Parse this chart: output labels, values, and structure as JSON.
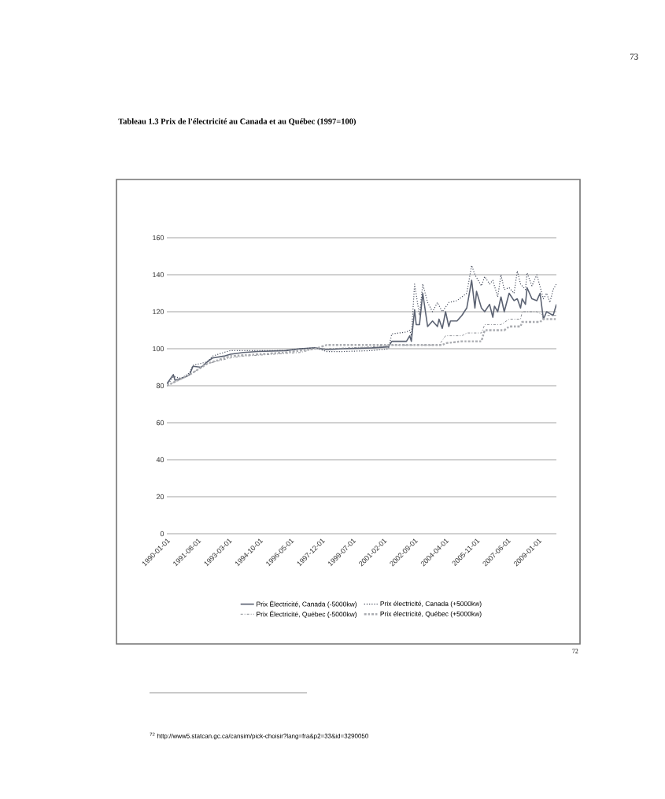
{
  "chart_data": {
    "type": "line",
    "title": "Tableau 1.3 Prix de l'électricité au Canada et au Québec (1997=100)",
    "annotations": [
      "73",
      "72",
      "$^{72}$ http://www5.statcan.gc.ca/cansim/pick-choisir?lang=fra&p2=33&id=3290050"
    ],
    "xlim": [
      "1990-01-01",
      "2009-12-01"
    ],
    "xticks": [
      "1990-01-01",
      "1991-08-01",
      "1993-03-01",
      "1994-10-01",
      "1996-05-01",
      "1997-12-01",
      "1999-07-01",
      "2001-02-01",
      "2002-09-01",
      "2004-04-01",
      "2005-11-01",
      "2007-06-01",
      "2009-01-01"
    ],
    "ylim": [
      0,
      160
    ],
    "yticks": [
      0,
      20,
      40,
      60,
      80,
      100,
      120,
      140,
      160
    ],
    "grid": "y",
    "legend": "bottom",
    "series": [
      {
        "name": "Prix Électricité, Canada  (-5000kw)",
        "color": "#5b6272",
        "line_style": "solid",
        "x": [
          "1990-01",
          "1990-05",
          "1990-06",
          "1990-10",
          "1991-01",
          "1991-03",
          "1991-05",
          "1991-10",
          "1992-02",
          "1992-05",
          "1992-12",
          "1993-04",
          "1993-12",
          "1994-09",
          "1996-02",
          "1996-11",
          "1997-08",
          "1998-03",
          "1999-01",
          "2000-07",
          "2001-05",
          "2001-07",
          "2002-04",
          "2002-06",
          "2002-07",
          "2002-09",
          "2002-10",
          "2002-12",
          "2003-02",
          "2003-05",
          "2003-08",
          "2003-11",
          "2003-12",
          "2004-02",
          "2004-04",
          "2004-06",
          "2004-07",
          "2004-11",
          "2005-02",
          "2005-05",
          "2005-08",
          "2005-10",
          "2005-11",
          "2006-02",
          "2006-04",
          "2006-07",
          "2006-09",
          "2006-10",
          "2006-12",
          "2007-02",
          "2007-04",
          "2007-07",
          "2007-10",
          "2007-12",
          "2008-02",
          "2008-03",
          "2008-05",
          "2008-06",
          "2008-09",
          "2008-12",
          "2009-02",
          "2009-04",
          "2009-06",
          "2009-08",
          "2009-10",
          "2009-12"
        ],
        "values": [
          81,
          86,
          83,
          84,
          85,
          86,
          90.5,
          90,
          93,
          95,
          96,
          97,
          98,
          98.5,
          99,
          100,
          100.5,
          99.5,
          100,
          100.5,
          101,
          104,
          104,
          107,
          104,
          121,
          113,
          113,
          130,
          112,
          115,
          112,
          116,
          111,
          120,
          112,
          115,
          115,
          118,
          122,
          137,
          122,
          131,
          122,
          120,
          124,
          117,
          123,
          120,
          128,
          120,
          130,
          126,
          127,
          122,
          127,
          124,
          133,
          127,
          126,
          130,
          116,
          120,
          119,
          118,
          124
        ]
      },
      {
        "name": "Prix électricité, Canada  (+5000kw)",
        "color": "#4a5060",
        "line_style": "dotted",
        "x": [
          "1990-01",
          "1990-05",
          "1990-10",
          "1991-03",
          "1991-05",
          "1992-02",
          "1992-05",
          "1992-12",
          "1993-04",
          "1994-09",
          "1996-02",
          "1996-11",
          "1997-08",
          "1998-03",
          "1999-01",
          "2000-07",
          "2001-05",
          "2001-07",
          "2002-04",
          "2002-06",
          "2002-07",
          "2002-09",
          "2002-12",
          "2003-02",
          "2003-05",
          "2003-08",
          "2003-11",
          "2004-02",
          "2004-06",
          "2004-11",
          "2005-02",
          "2005-05",
          "2005-08",
          "2005-10",
          "2006-02",
          "2006-04",
          "2006-07",
          "2006-09",
          "2006-12",
          "2007-02",
          "2007-04",
          "2007-07",
          "2007-10",
          "2007-12",
          "2008-02",
          "2008-05",
          "2008-06",
          "2008-09",
          "2008-12",
          "2009-04",
          "2009-06",
          "2009-08",
          "2009-10",
          "2009-12"
        ],
        "values": [
          80,
          85,
          84,
          87,
          91,
          93,
          96,
          98,
          99,
          99,
          99,
          100,
          100.5,
          98.5,
          98.5,
          99,
          100,
          108,
          109,
          110,
          107,
          135,
          118,
          135,
          125,
          120,
          125,
          120,
          125,
          126,
          128,
          130,
          145,
          140,
          134,
          139,
          135,
          137,
          128,
          140,
          132,
          133,
          130,
          142,
          135,
          132,
          141,
          134,
          140,
          127,
          130,
          125,
          132,
          135
        ]
      },
      {
        "name": "Prix Électricité, Québec  (-5000kw)",
        "color": "#8c8f95",
        "line_style": "dashed",
        "x": [
          "1990-01",
          "1991-01",
          "1991-03",
          "1992-02",
          "1993-04",
          "1993-12",
          "1995-06",
          "1996-11",
          "1997-08",
          "1998-03",
          "2000-07",
          "2001-07",
          "2003-12",
          "2004-04",
          "2005-02",
          "2005-05",
          "2006-02",
          "2006-04",
          "2007-02",
          "2007-07",
          "2008-02",
          "2008-03",
          "2008-12",
          "2009-04",
          "2009-12"
        ],
        "values": [
          80,
          85,
          86,
          92,
          95,
          96,
          97,
          98,
          100,
          100,
          101,
          102,
          102,
          107,
          107,
          108.5,
          108.5,
          113,
          113,
          116,
          116,
          120,
          120,
          118,
          118
        ]
      },
      {
        "name": "Prix électricité, Québec  (+5000kw)",
        "color": "#a9abb0",
        "line_style": "dashed",
        "x": [
          "1990-01",
          "1991-03",
          "1992-02",
          "1993-04",
          "1994-09",
          "1996-02",
          "1997-08",
          "1998-03",
          "2001-05",
          "2001-07",
          "2004-02",
          "2004-04",
          "2005-02",
          "2006-02",
          "2006-04",
          "2007-04",
          "2007-07",
          "2008-02",
          "2008-03",
          "2009-02",
          "2009-04",
          "2009-12"
        ],
        "values": [
          80,
          86,
          92,
          96,
          97,
          98,
          100,
          102,
          102,
          102,
          102,
          103,
          104,
          104,
          110,
          110,
          112,
          112,
          114.5,
          114.5,
          116,
          116
        ]
      }
    ]
  }
}
